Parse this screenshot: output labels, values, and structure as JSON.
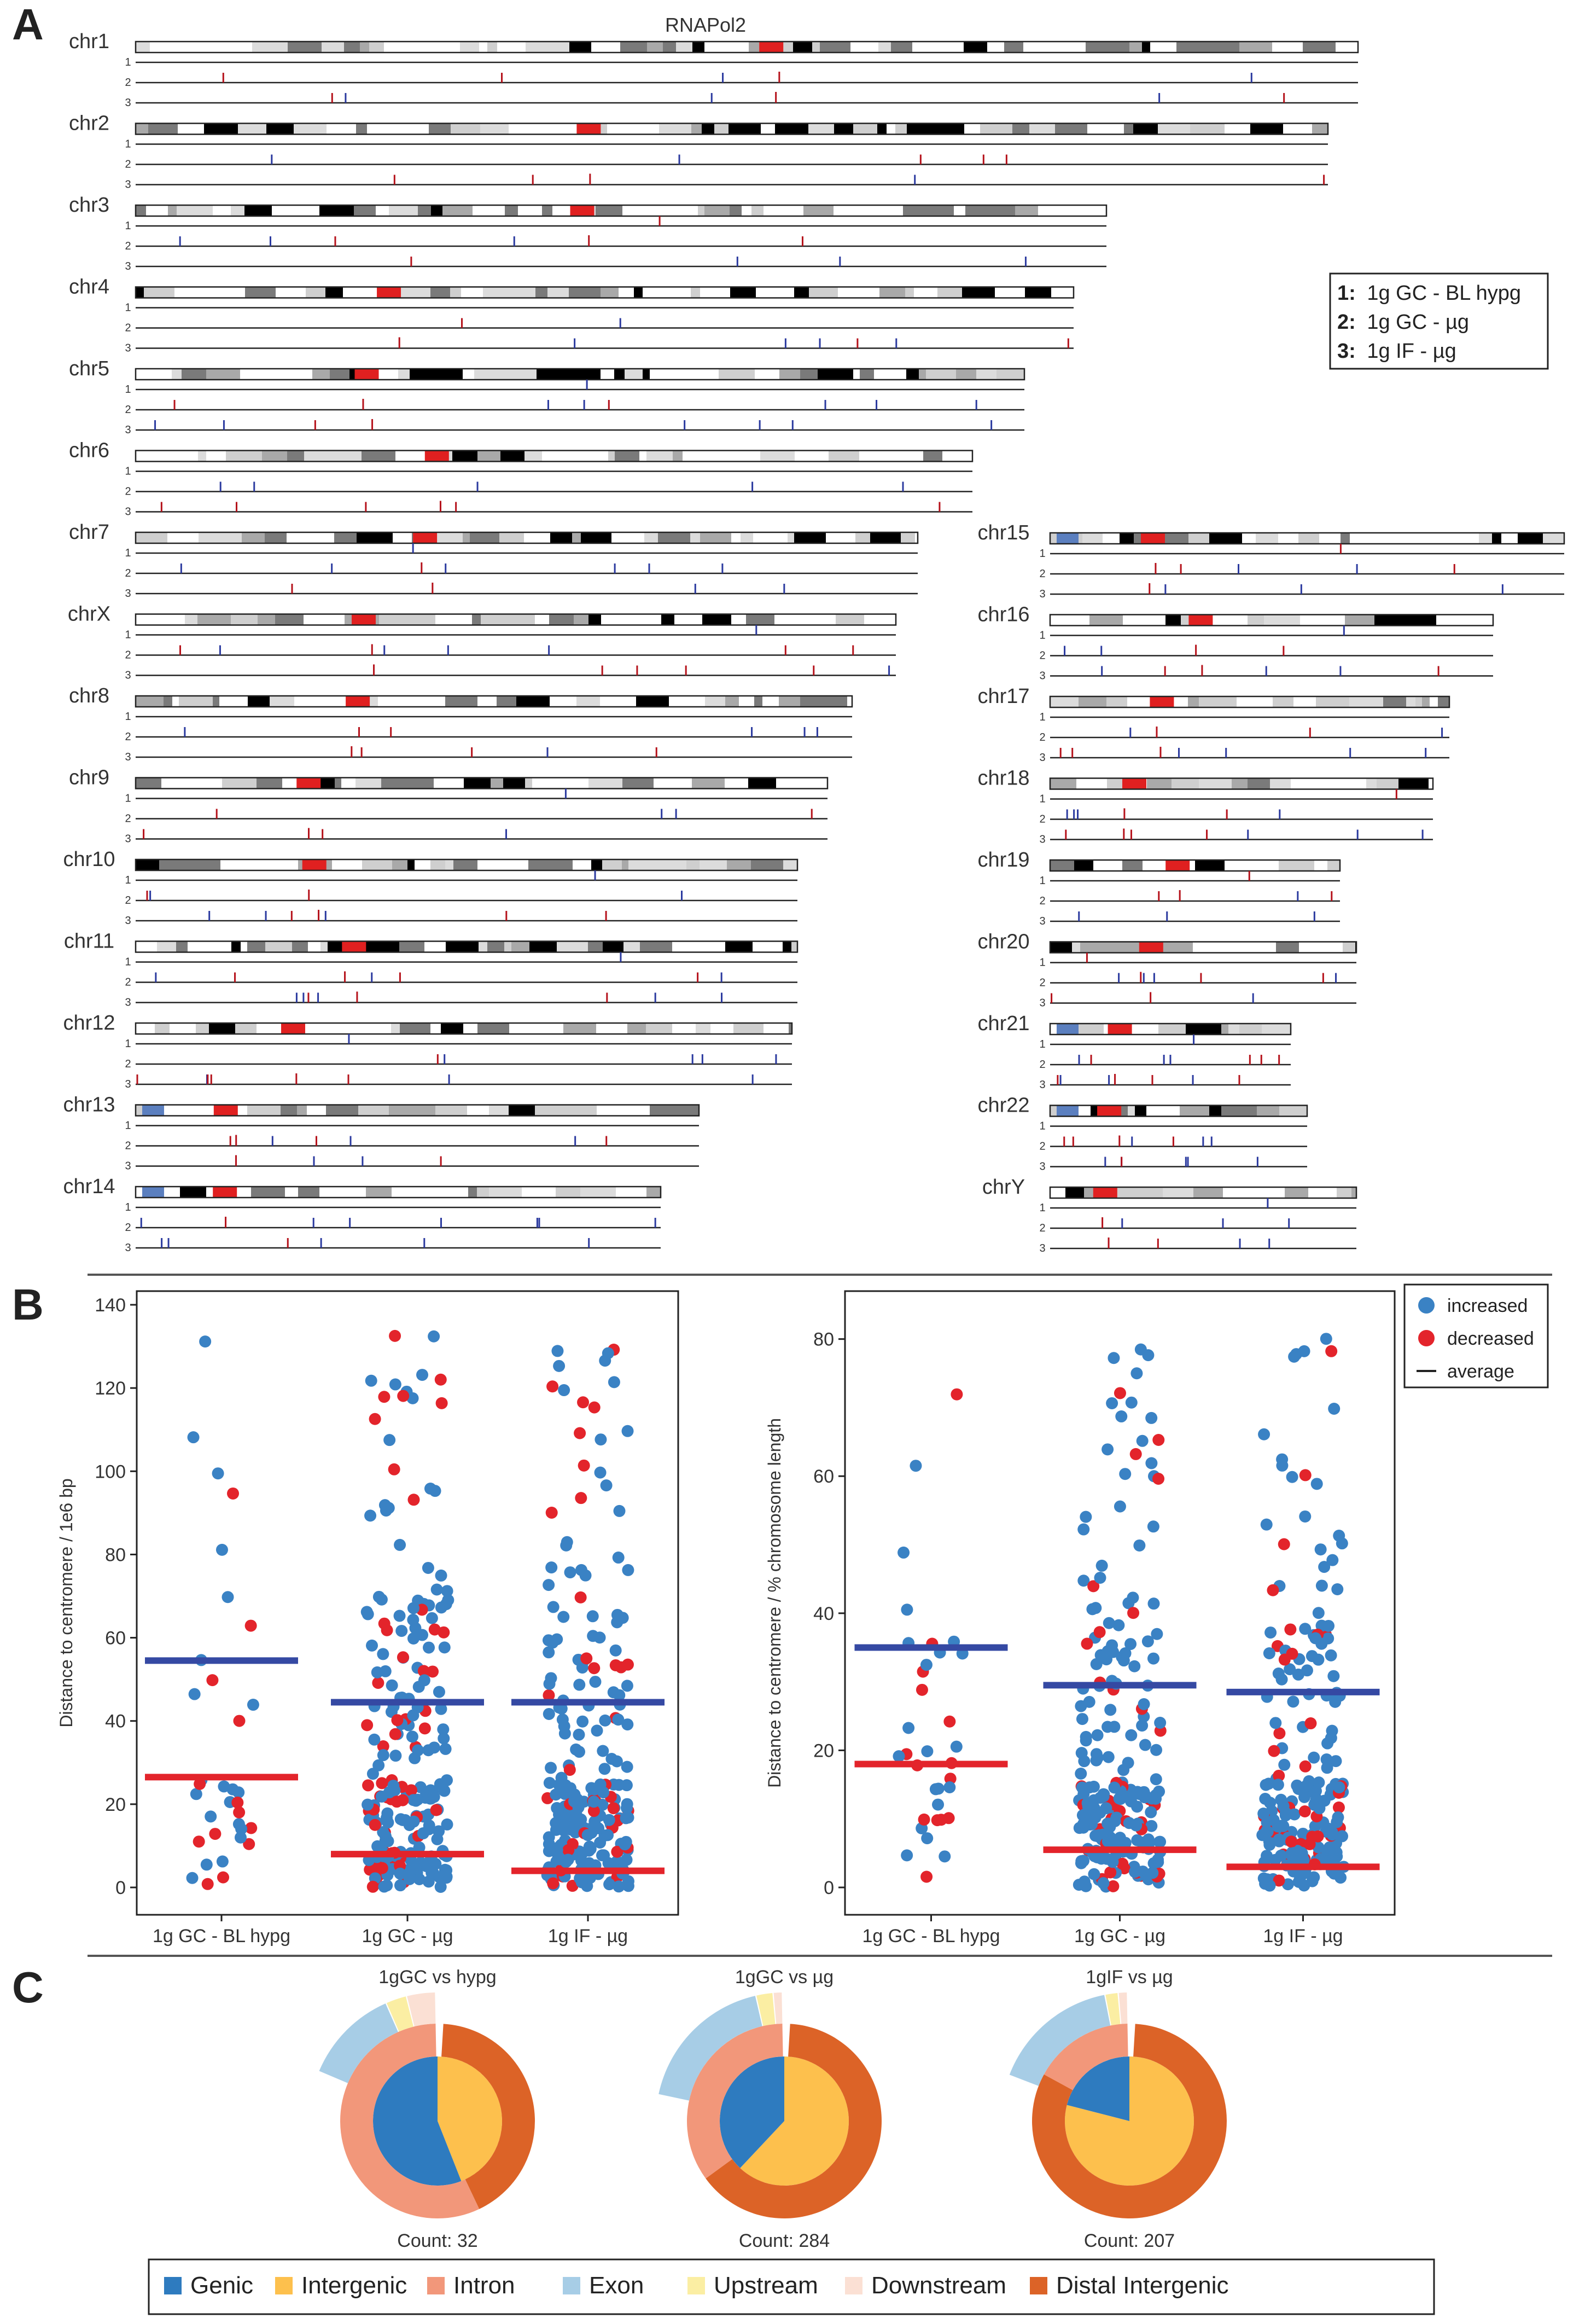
{
  "panel_letters": {
    "a": "A",
    "b": "B",
    "c": "C"
  },
  "panel_a": {
    "title": "RNAPol2",
    "track_labels": [
      "1",
      "2",
      "3"
    ],
    "legend": [
      {
        "key": "1:",
        "text": "1g GC - BL hypg"
      },
      {
        "key": "2:",
        "text": "1g GC - µg"
      },
      {
        "key": "3:",
        "text": "1g IF - µg"
      }
    ],
    "chromosomes_left": [
      "chr1",
      "chr2",
      "chr3",
      "chr4",
      "chr5",
      "chr6",
      "chr7",
      "chrX",
      "chr8",
      "chr9",
      "chr10",
      "chr11",
      "chr12",
      "chr13",
      "chr14"
    ],
    "chromosomes_right": [
      "chr15",
      "chr16",
      "chr17",
      "chr18",
      "chr19",
      "chr20",
      "chr21",
      "chr22",
      "chrY"
    ],
    "colors": {
      "increased": "#2b3a9f",
      "decreased": "#b5121b",
      "centromere": "#e02020",
      "acrocentric": "#5b7fbf"
    }
  },
  "panel_b": {
    "legend": [
      {
        "label": "increased",
        "color": "#3a82c4"
      },
      {
        "label": "decreased",
        "color": "#e3242b"
      },
      {
        "label": "average",
        "color": "#222222"
      }
    ],
    "chart_data": [
      {
        "type": "scatter",
        "ylabel": "Distance to centromere / 1e6 bp",
        "ylim": [
          0,
          140
        ],
        "yticks": [
          0,
          20,
          40,
          60,
          80,
          100,
          120,
          140
        ],
        "categories": [
          "1g GC - BL hypg",
          "1g GC - µg",
          "1g IF - µg"
        ],
        "average_increased": [
          54.5,
          44.5,
          44.5
        ],
        "average_decreased": [
          26.5,
          8,
          4
        ],
        "colors": {
          "increased": "#3a82c4",
          "decreased": "#e3242b",
          "avg_increased": "#3549a3",
          "avg_decreased": "#e3242b"
        }
      },
      {
        "type": "scatter",
        "ylabel": "Distance to centromere / % chromosome length",
        "ylim": [
          0,
          85
        ],
        "yticks": [
          0,
          20,
          40,
          60,
          80
        ],
        "categories": [
          "1g GC - BL hypg",
          "1g GC - µg",
          "1g IF - µg"
        ],
        "average_increased": [
          35,
          29.5,
          28.5
        ],
        "average_decreased": [
          18,
          5.5,
          3
        ],
        "colors": {
          "increased": "#3a82c4",
          "decreased": "#e3242b",
          "avg_increased": "#3549a3",
          "avg_decreased": "#e3242b"
        }
      }
    ]
  },
  "panel_c": {
    "legend": [
      {
        "label": "Genic",
        "color": "#2e7bbf"
      },
      {
        "label": "Intergenic",
        "color": "#fdc04d"
      },
      {
        "label": "Intron",
        "color": "#f2977a"
      },
      {
        "label": "Exon",
        "color": "#a7cde6"
      },
      {
        "label": "Upstream",
        "color": "#fbeea3"
      },
      {
        "label": "Downstream",
        "color": "#fbe0d4"
      },
      {
        "label": "Distal Intergenic",
        "color": "#dc6327"
      }
    ],
    "chart_data": [
      {
        "type": "pie",
        "title": "1gGC vs hypg",
        "count_label": "Count: 32",
        "inner": [
          {
            "label": "Genic",
            "value": 56
          },
          {
            "label": "Intergenic",
            "value": 44
          }
        ],
        "middle": [
          {
            "label": "Intron",
            "value": 58
          },
          {
            "label": "Distal Intergenic",
            "value": 42
          }
        ],
        "outer": [
          {
            "label": "Exon",
            "value": 12
          },
          {
            "label": "Upstream",
            "value": 2.5
          },
          {
            "label": "Downstream",
            "value": 3.5
          }
        ]
      },
      {
        "type": "pie",
        "title": "1gGC vs µg",
        "count_label": "Count: 284",
        "inner": [
          {
            "label": "Genic",
            "value": 38
          },
          {
            "label": "Intergenic",
            "value": 62
          }
        ],
        "middle": [
          {
            "label": "Intron",
            "value": 36
          },
          {
            "label": "Distal Intergenic",
            "value": 64
          }
        ],
        "outer": [
          {
            "label": "Exon",
            "value": 18
          },
          {
            "label": "Upstream",
            "value": 2
          },
          {
            "label": "Downstream",
            "value": 1
          }
        ]
      },
      {
        "type": "pie",
        "title": "1gIF vs µg",
        "count_label": "Count: 207",
        "inner": [
          {
            "label": "Genic",
            "value": 21
          },
          {
            "label": "Intergenic",
            "value": 79
          }
        ],
        "middle": [
          {
            "label": "Intron",
            "value": 18
          },
          {
            "label": "Distal Intergenic",
            "value": 82
          }
        ],
        "outer": [
          {
            "label": "Exon",
            "value": 16
          },
          {
            "label": "Upstream",
            "value": 1.5
          },
          {
            "label": "Downstream",
            "value": 1
          }
        ]
      }
    ]
  }
}
